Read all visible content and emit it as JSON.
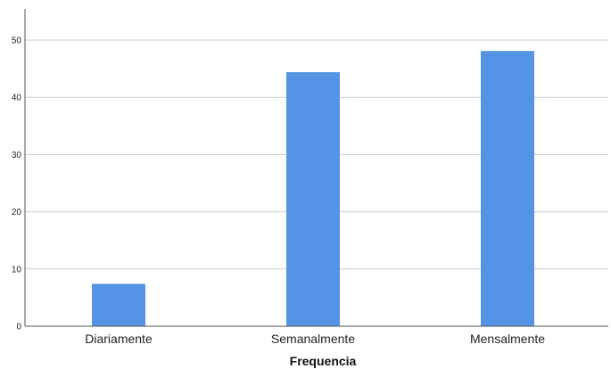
{
  "chart_data": {
    "type": "bar",
    "title": "",
    "xlabel": "Frequencia",
    "ylabel": "",
    "categories": [
      "Diariamente",
      "Semanalmente",
      "Mensalmente"
    ],
    "values": [
      7.4,
      44.4,
      48.1
    ],
    "ylim": [
      0,
      55
    ],
    "yticks": [
      0,
      10,
      20,
      30,
      40,
      50
    ],
    "grid": true,
    "legend": "none",
    "bar_color": "#5593e5",
    "grid_color": "#cccccc",
    "axis_color": "#555555"
  }
}
